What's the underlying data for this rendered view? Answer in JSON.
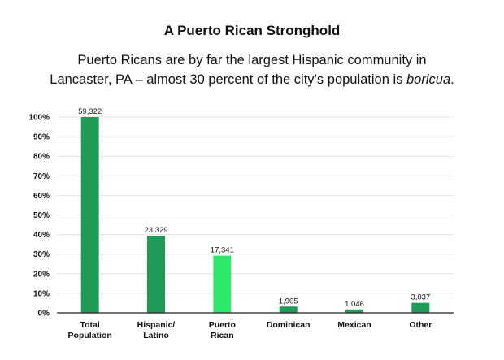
{
  "title": "A Puerto Rican Stronghold",
  "subtitle": {
    "text": "Puerto Ricans are by far the largest Hispanic community in Lancaster, PA – almost 30 percent of the city’s population is ",
    "emphasis": "boricua",
    "end": "."
  },
  "colors": {
    "bar": "#1e9b57",
    "highlight": "#2ee86a",
    "grid": "#e3e3e3",
    "axis": "#222222"
  },
  "chart_data": {
    "type": "bar",
    "title": "A Puerto Rican Stronghold",
    "categories": [
      [
        "Total",
        "Population"
      ],
      [
        "Hispanic/",
        "Latino"
      ],
      [
        "Puerto",
        "Rican"
      ],
      [
        "Dominican"
      ],
      [
        "Mexican"
      ],
      [
        "Other"
      ]
    ],
    "values": [
      59322,
      23329,
      17341,
      1905,
      1046,
      3037
    ],
    "value_labels": [
      "59,322",
      "23,329",
      "17,341",
      "1,905",
      "1,046",
      "3,037"
    ],
    "percent_of_total": [
      100,
      39.3,
      29.2,
      3.2,
      1.8,
      5.1
    ],
    "highlight": [
      false,
      false,
      true,
      false,
      false,
      false
    ],
    "yticks": [
      "0%",
      "10%",
      "20%",
      "30%",
      "40%",
      "50%",
      "60%",
      "70%",
      "80%",
      "90%",
      "100%"
    ],
    "ylim": [
      0,
      100
    ],
    "grid": true,
    "legend": "none"
  }
}
